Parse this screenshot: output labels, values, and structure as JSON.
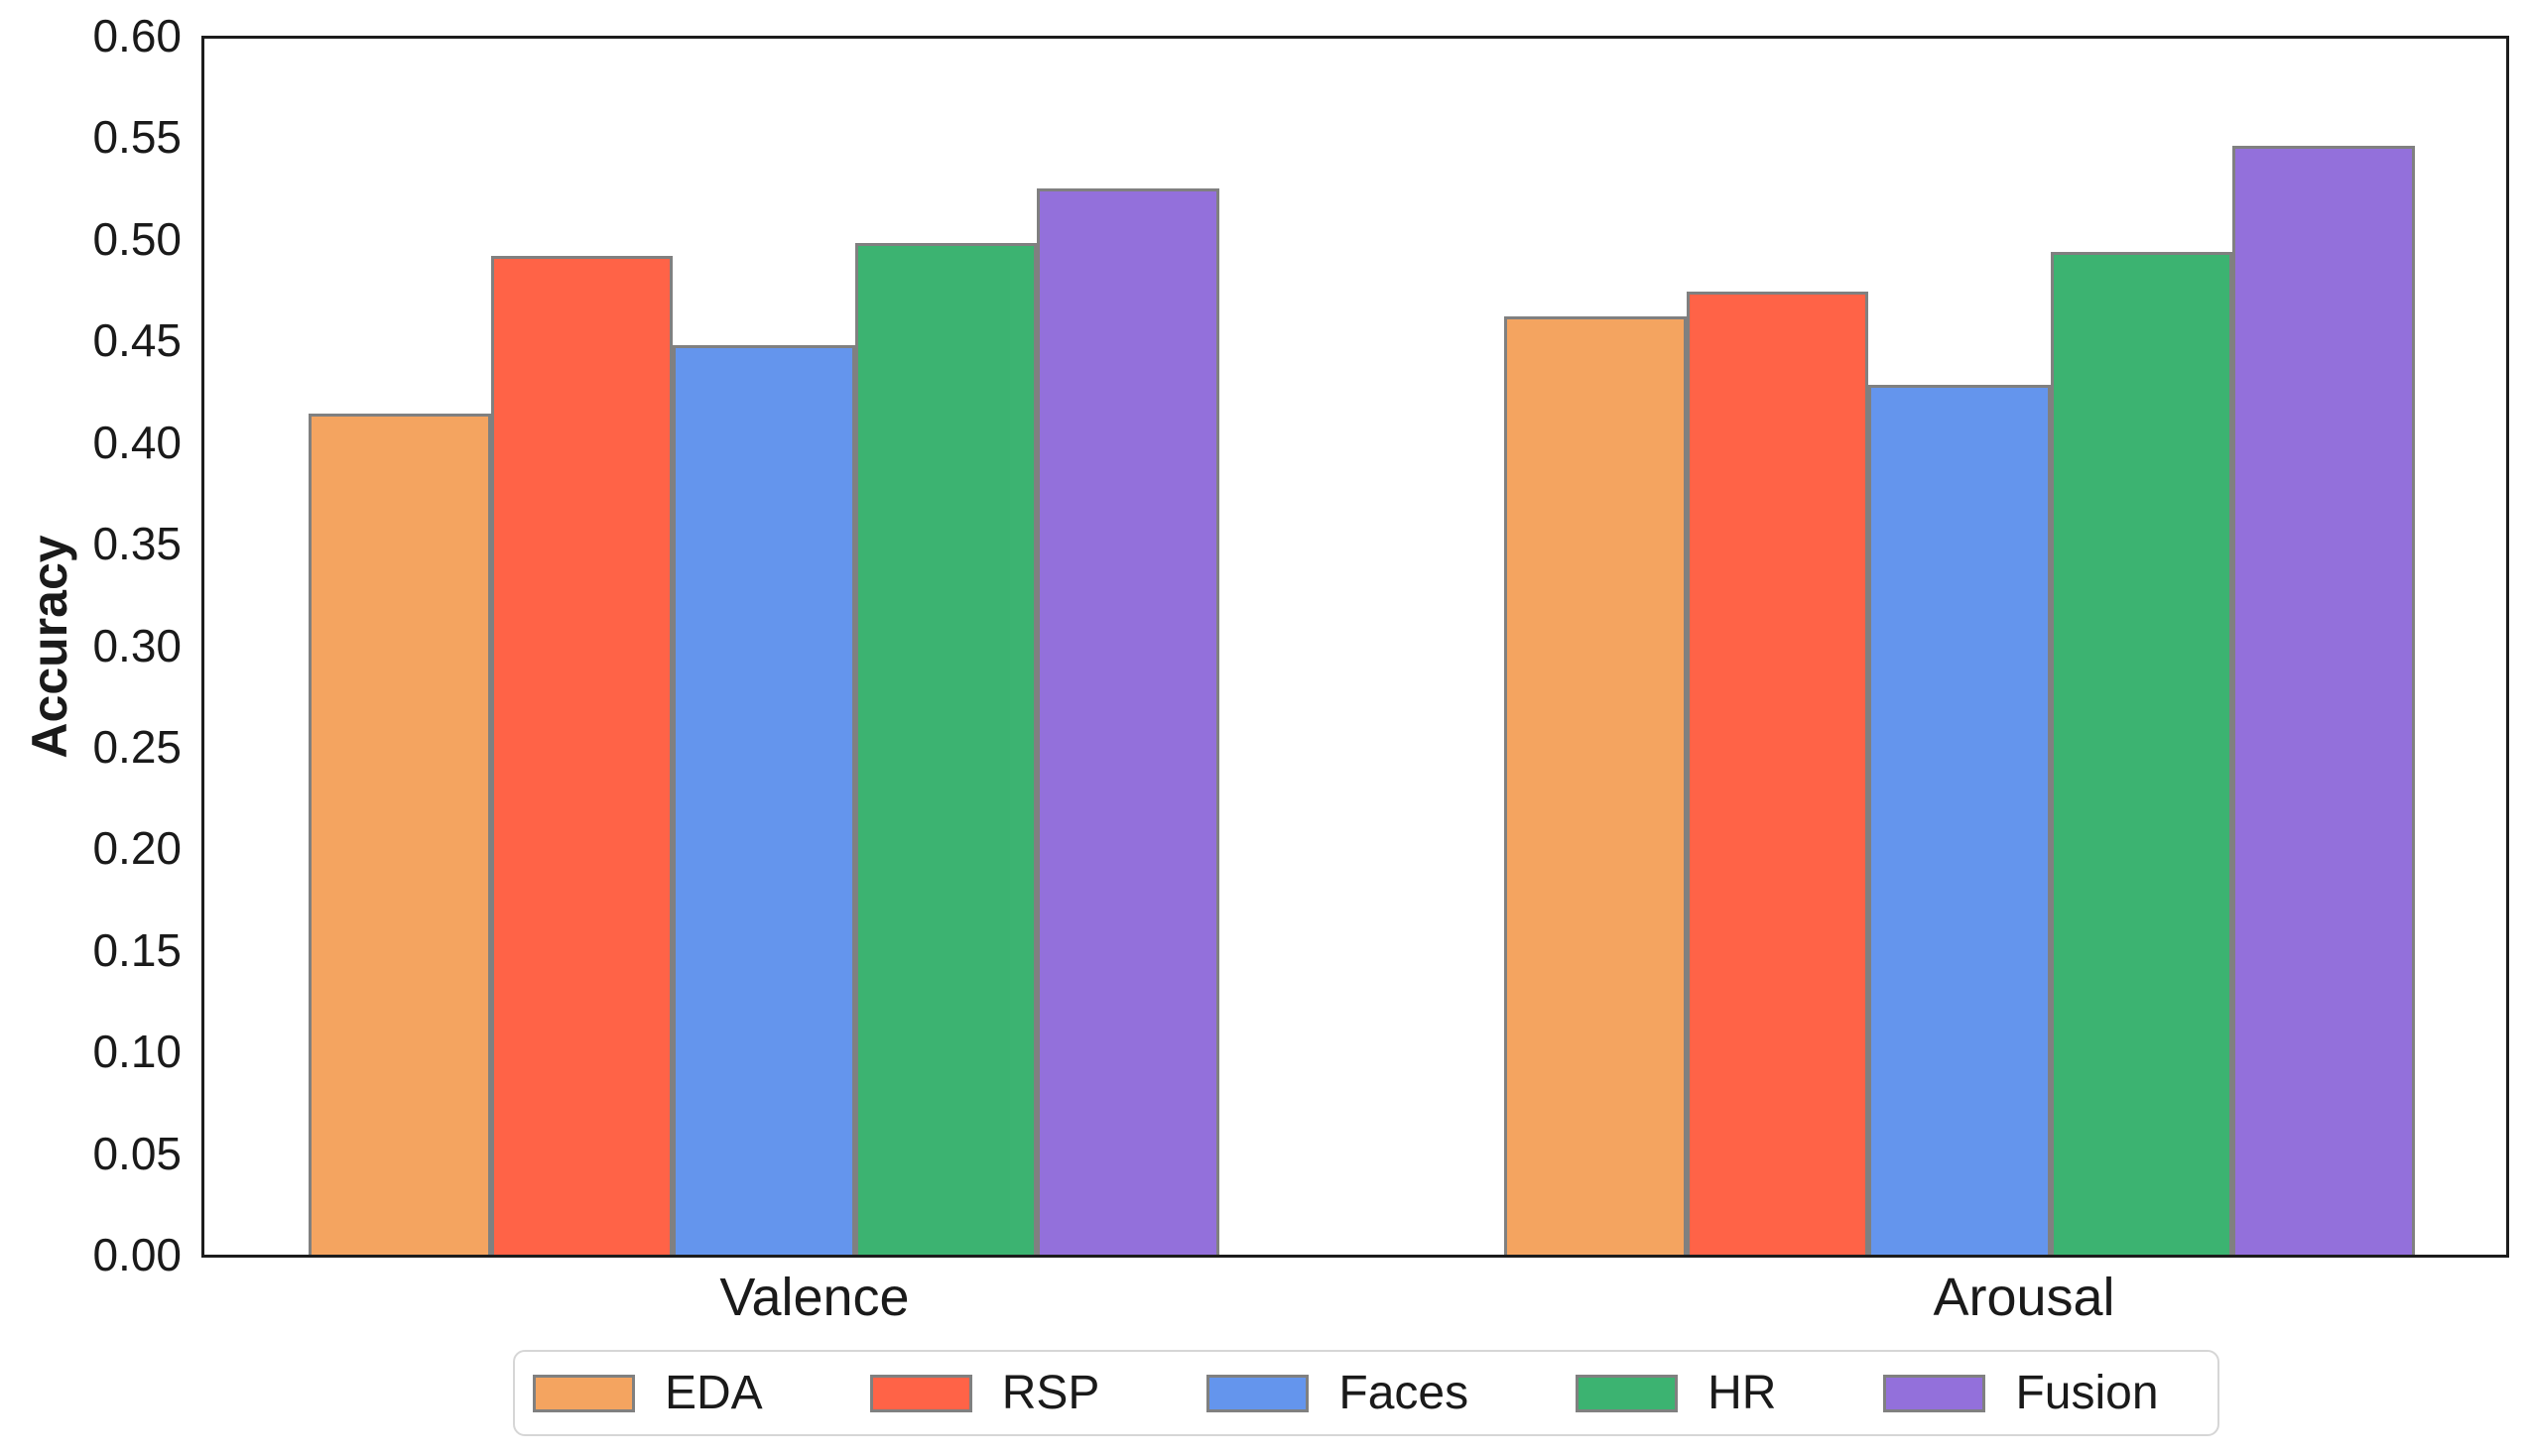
{
  "chart_data": {
    "type": "bar",
    "title": "",
    "xlabel": "",
    "ylabel": "Accuracy",
    "categories": [
      "Valence",
      "Arousal"
    ],
    "series": [
      {
        "name": "EDA",
        "color": "#F4A460",
        "values": [
          0.415,
          0.463
        ]
      },
      {
        "name": "RSP",
        "color": "#FF6347",
        "values": [
          0.493,
          0.475
        ]
      },
      {
        "name": "Faces",
        "color": "#6495ED",
        "values": [
          0.449,
          0.429
        ]
      },
      {
        "name": "HR",
        "color": "#3CB371",
        "values": [
          0.499,
          0.495
        ]
      },
      {
        "name": "Fusion",
        "color": "#9370DB",
        "values": [
          0.526,
          0.547
        ]
      }
    ],
    "ylim": [
      0.0,
      0.6
    ],
    "ytick_step": 0.05,
    "yticks": [
      "0.00",
      "0.05",
      "0.10",
      "0.15",
      "0.20",
      "0.25",
      "0.30",
      "0.35",
      "0.40",
      "0.45",
      "0.50",
      "0.55",
      "0.60"
    ],
    "grid": false,
    "frame": true,
    "legend_position": "bottom",
    "bar_edge_color": "#808080",
    "spine_color": "#1c1c1c",
    "text_color": "#1a1a1a"
  }
}
